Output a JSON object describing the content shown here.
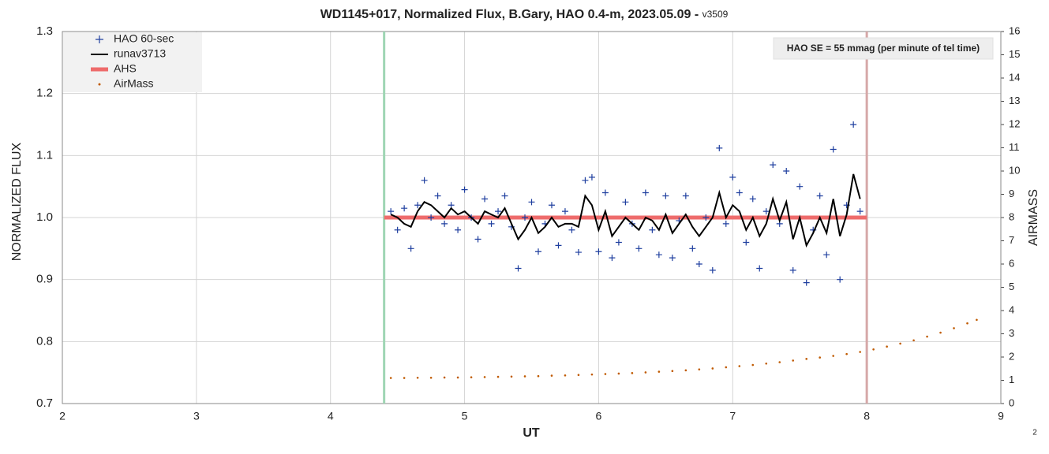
{
  "chart_data": {
    "type": "scatter",
    "title": "WD1145+017, Normalized Flux, B.Gary, HAO 0.4-m, 2023.05.09 - ",
    "title_version": "v3509",
    "xlabel": "UT",
    "ylabel": "NORMALIZED FLUX",
    "y2label": "AIRMASS",
    "annotation": "HAO SE =  55 mmag (per minute of tel time)",
    "page_number": "2",
    "xlim": [
      2,
      9
    ],
    "xticks": [
      2,
      3,
      4,
      5,
      6,
      7,
      8,
      9
    ],
    "ylim": [
      0.7,
      1.3
    ],
    "yticks": [
      0.7,
      0.8,
      0.9,
      {
        "value": 1,
        "label": "1.0"
      },
      1.1,
      1.2,
      1.3
    ],
    "y2lim": [
      0,
      16
    ],
    "y2ticks": [
      0,
      1,
      2,
      3,
      4,
      5,
      6,
      7,
      8,
      9,
      10,
      11,
      12,
      13,
      14,
      15,
      16
    ],
    "grid": true,
    "legend": "upper left",
    "vlines": [
      {
        "x": 4.4,
        "color": "#9fd6b4"
      },
      {
        "x": 8.0,
        "color": "#d6a8a8"
      }
    ],
    "series": [
      {
        "name": "HAO 60-sec",
        "kind": "plus",
        "color": "#1f3f9f",
        "x": [
          4.45,
          4.5,
          4.55,
          4.6,
          4.65,
          4.7,
          4.75,
          4.8,
          4.85,
          4.9,
          4.95,
          5.0,
          5.05,
          5.1,
          5.15,
          5.2,
          5.25,
          5.3,
          5.35,
          5.4,
          5.45,
          5.5,
          5.55,
          5.6,
          5.65,
          5.7,
          5.75,
          5.8,
          5.85,
          5.9,
          5.95,
          6.0,
          6.05,
          6.1,
          6.15,
          6.2,
          6.25,
          6.3,
          6.35,
          6.4,
          6.45,
          6.5,
          6.55,
          6.6,
          6.65,
          6.7,
          6.75,
          6.8,
          6.85,
          6.9,
          6.95,
          7.0,
          7.05,
          7.1,
          7.15,
          7.2,
          7.25,
          7.3,
          7.35,
          7.4,
          7.45,
          7.5,
          7.55,
          7.6,
          7.65,
          7.7,
          7.75,
          7.8,
          7.85,
          7.9,
          7.95
        ],
        "values": [
          1.01,
          0.98,
          1.015,
          0.95,
          1.02,
          1.06,
          1.0,
          1.035,
          0.99,
          1.02,
          0.98,
          1.045,
          1.0,
          0.965,
          1.03,
          0.99,
          1.01,
          1.035,
          0.985,
          0.918,
          1.0,
          1.025,
          0.945,
          0.99,
          1.02,
          0.955,
          1.01,
          0.98,
          0.944,
          1.06,
          1.065,
          0.945,
          1.04,
          0.935,
          0.96,
          1.025,
          0.99,
          0.95,
          1.04,
          0.98,
          0.94,
          1.035,
          0.935,
          0.995,
          1.035,
          0.95,
          0.925,
          1.0,
          0.915,
          1.112,
          0.99,
          1.065,
          1.04,
          0.96,
          1.03,
          0.918,
          1.01,
          1.085,
          0.99,
          1.075,
          0.915,
          1.05,
          0.895,
          0.98,
          1.035,
          0.94,
          1.11,
          0.9,
          1.02,
          1.15,
          1.01
        ]
      },
      {
        "name": "runav3713",
        "kind": "line",
        "color": "#000000",
        "x": [
          4.45,
          4.5,
          4.55,
          4.6,
          4.65,
          4.7,
          4.75,
          4.8,
          4.85,
          4.9,
          4.95,
          5.0,
          5.05,
          5.1,
          5.15,
          5.2,
          5.25,
          5.3,
          5.35,
          5.4,
          5.45,
          5.5,
          5.55,
          5.6,
          5.65,
          5.7,
          5.75,
          5.8,
          5.85,
          5.9,
          5.95,
          6.0,
          6.05,
          6.1,
          6.15,
          6.2,
          6.25,
          6.3,
          6.35,
          6.4,
          6.45,
          6.5,
          6.55,
          6.6,
          6.65,
          6.7,
          6.75,
          6.8,
          6.85,
          6.9,
          6.95,
          7.0,
          7.05,
          7.1,
          7.15,
          7.2,
          7.25,
          7.3,
          7.35,
          7.4,
          7.45,
          7.5,
          7.55,
          7.6,
          7.65,
          7.7,
          7.75,
          7.8,
          7.85,
          7.9,
          7.95
        ],
        "values": [
          1.005,
          1.0,
          0.99,
          0.985,
          1.01,
          1.025,
          1.02,
          1.01,
          1.0,
          1.015,
          1.005,
          1.01,
          1.0,
          0.99,
          1.01,
          1.005,
          1.0,
          1.015,
          0.99,
          0.965,
          0.98,
          1.0,
          0.975,
          0.985,
          1.0,
          0.985,
          0.99,
          0.99,
          0.985,
          1.035,
          1.02,
          0.98,
          1.01,
          0.97,
          0.985,
          1.0,
          0.99,
          0.98,
          1.0,
          0.995,
          0.98,
          1.005,
          0.975,
          0.99,
          1.005,
          0.985,
          0.97,
          0.985,
          1.0,
          1.04,
          1.0,
          1.02,
          1.01,
          0.98,
          1.0,
          0.97,
          0.99,
          1.03,
          0.995,
          1.025,
          0.965,
          1.0,
          0.955,
          0.975,
          1.0,
          0.975,
          1.03,
          0.97,
          1.005,
          1.07,
          1.03
        ]
      },
      {
        "name": "AHS",
        "kind": "thick",
        "color": "#ee6b6b",
        "x": [
          4.4,
          8.0
        ],
        "values": [
          1.0,
          1.0
        ]
      },
      {
        "name": "AirMass",
        "kind": "dots",
        "color": "#c05a00",
        "axis": "y2",
        "x": [
          4.45,
          4.55,
          4.65,
          4.75,
          4.85,
          4.95,
          5.05,
          5.15,
          5.25,
          5.35,
          5.45,
          5.55,
          5.65,
          5.75,
          5.85,
          5.95,
          6.05,
          6.15,
          6.25,
          6.35,
          6.45,
          6.55,
          6.65,
          6.75,
          6.85,
          6.95,
          7.05,
          7.15,
          7.25,
          7.35,
          7.45,
          7.55,
          7.65,
          7.75,
          7.85,
          7.95,
          8.05,
          8.15,
          8.25,
          8.35,
          8.45,
          8.55,
          8.65,
          8.75,
          8.82
        ],
        "values": [
          1.1,
          1.1,
          1.11,
          1.11,
          1.12,
          1.12,
          1.13,
          1.14,
          1.15,
          1.16,
          1.17,
          1.18,
          1.2,
          1.21,
          1.23,
          1.25,
          1.27,
          1.29,
          1.31,
          1.34,
          1.37,
          1.4,
          1.43,
          1.47,
          1.51,
          1.56,
          1.61,
          1.66,
          1.72,
          1.78,
          1.85,
          1.92,
          1.98,
          2.05,
          2.13,
          2.22,
          2.33,
          2.45,
          2.58,
          2.72,
          2.88,
          3.05,
          3.24,
          3.45,
          3.6
        ]
      }
    ]
  }
}
